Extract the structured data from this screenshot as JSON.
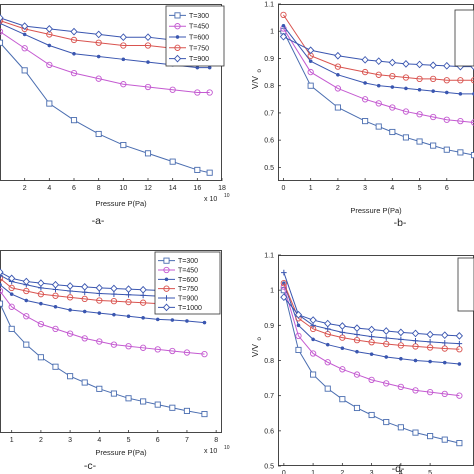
{
  "chart_data": [
    {
      "id": "a",
      "type": "line",
      "panel_label": "-a-",
      "xlabel": "Pressure P(Pa)",
      "ylabel": "",
      "x_exponent": "x 10",
      "x_exponent_power": "10",
      "xlim": [
        0,
        18
      ],
      "ylim": [
        0.38,
        1.02
      ],
      "xticks": [
        2,
        4,
        6,
        8,
        10,
        12,
        14,
        16,
        18
      ],
      "yticks": [],
      "legend_position": "top-right",
      "x": [
        0,
        2,
        4,
        6,
        8,
        10,
        12,
        14,
        16,
        17
      ],
      "series": [
        {
          "name": "T=300",
          "color": "#4a6db0",
          "marker": "square",
          "values": [
            0.88,
            0.78,
            0.66,
            0.6,
            0.55,
            0.51,
            0.48,
            0.45,
            0.42,
            0.41
          ]
        },
        {
          "name": "T=450",
          "color": "#c45ad1",
          "marker": "circle",
          "values": [
            0.92,
            0.86,
            0.8,
            0.77,
            0.75,
            0.73,
            0.72,
            0.71,
            0.7,
            0.7
          ]
        },
        {
          "name": "T=600",
          "color": "#3a56b0",
          "marker": "dot",
          "values": [
            0.95,
            0.91,
            0.87,
            0.84,
            0.83,
            0.82,
            0.81,
            0.8,
            0.79,
            0.79
          ]
        },
        {
          "name": "T=750",
          "color": "#d9534f",
          "marker": "circle",
          "values": [
            0.96,
            0.93,
            0.91,
            0.89,
            0.88,
            0.87,
            0.87,
            0.86,
            0.86,
            0.86
          ]
        },
        {
          "name": "T=900",
          "color": "#3a56b0",
          "marker": "diamond",
          "values": [
            0.97,
            0.94,
            0.93,
            0.92,
            0.91,
            0.9,
            0.9,
            0.89,
            0.89,
            0.89
          ]
        }
      ]
    },
    {
      "id": "b",
      "type": "line",
      "panel_label": "-b-",
      "xlabel": "Pressure P(Pa)",
      "ylabel": "V/V0",
      "ylabel_main": "V/V",
      "ylabel_sub": "o",
      "xlim": [
        -0.2,
        7
      ],
      "ylim": [
        0.45,
        1.1
      ],
      "xticks": [
        0,
        1,
        2,
        3,
        4,
        5,
        6
      ],
      "yticks": [
        0.5,
        0.6,
        0.7,
        0.8,
        0.9,
        1,
        1.1
      ],
      "x": [
        0,
        1,
        2,
        3,
        3.5,
        4,
        4.5,
        5,
        5.5,
        6,
        6.5,
        7
      ],
      "series": [
        {
          "color": "#4a6db0",
          "marker": "square",
          "values": [
            1.0,
            0.8,
            0.72,
            0.67,
            0.65,
            0.63,
            0.61,
            0.595,
            0.58,
            0.565,
            0.555,
            0.545
          ]
        },
        {
          "color": "#c45ad1",
          "marker": "circle",
          "values": [
            1.01,
            0.85,
            0.79,
            0.75,
            0.735,
            0.72,
            0.705,
            0.695,
            0.685,
            0.675,
            0.67,
            0.665
          ]
        },
        {
          "color": "#3a56b0",
          "marker": "dot",
          "values": [
            1.02,
            0.89,
            0.84,
            0.81,
            0.8,
            0.795,
            0.79,
            0.785,
            0.78,
            0.775,
            0.77,
            0.77
          ]
        },
        {
          "color": "#d9534f",
          "marker": "circle",
          "values": [
            1.06,
            0.91,
            0.87,
            0.85,
            0.84,
            0.835,
            0.83,
            0.825,
            0.825,
            0.82,
            0.82,
            0.82
          ]
        },
        {
          "color": "#3a56b0",
          "marker": "diamond",
          "values": [
            0.98,
            0.93,
            0.91,
            0.895,
            0.89,
            0.885,
            0.88,
            0.878,
            0.875,
            0.873,
            0.87,
            0.87
          ]
        }
      ]
    },
    {
      "id": "c",
      "type": "line",
      "panel_label": "-c-",
      "xlabel": "Pressure P(Pa)",
      "ylabel": "",
      "x_exponent": "x 10",
      "x_exponent_power": "10",
      "xlim": [
        0.6,
        8.2
      ],
      "ylim": [
        0.42,
        1.0
      ],
      "xticks": [
        1,
        2,
        3,
        4,
        5,
        6,
        7,
        8
      ],
      "yticks": [],
      "legend_position": "top-right",
      "x": [
        0.6,
        1,
        1.5,
        2,
        2.5,
        3,
        3.5,
        4,
        4.5,
        5,
        5.5,
        6,
        6.5,
        7,
        7.6
      ],
      "series": [
        {
          "name": "T=300",
          "color": "#4a6db0",
          "marker": "square",
          "values": [
            0.83,
            0.75,
            0.7,
            0.66,
            0.63,
            0.6,
            0.58,
            0.56,
            0.545,
            0.53,
            0.52,
            0.51,
            0.5,
            0.49,
            0.48
          ]
        },
        {
          "name": "T=450",
          "color": "#c45ad1",
          "marker": "circle",
          "values": [
            0.87,
            0.82,
            0.79,
            0.765,
            0.75,
            0.735,
            0.72,
            0.71,
            0.7,
            0.695,
            0.69,
            0.685,
            0.68,
            0.675,
            0.67
          ]
        },
        {
          "name": "T=600",
          "color": "#3a56b0",
          "marker": "dot",
          "values": [
            0.89,
            0.86,
            0.84,
            0.83,
            0.82,
            0.81,
            0.805,
            0.8,
            0.795,
            0.79,
            0.785,
            0.78,
            0.778,
            0.775,
            0.77
          ]
        },
        {
          "name": "T=750",
          "color": "#d9534f",
          "marker": "circle",
          "values": [
            0.91,
            0.88,
            0.87,
            0.86,
            0.855,
            0.85,
            0.845,
            0.84,
            0.838,
            0.835,
            0.833,
            0.83,
            0.828,
            0.826,
            0.825
          ]
        },
        {
          "name": "T=900",
          "color": "#3a56b0",
          "marker": "plus",
          "values": [
            0.92,
            0.9,
            0.89,
            0.88,
            0.875,
            0.87,
            0.866,
            0.862,
            0.86,
            0.858,
            0.856,
            0.854,
            0.852,
            0.85,
            0.85
          ]
        },
        {
          "name": "T=1000",
          "color": "#3a56b0",
          "marker": "diamond",
          "values": [
            0.93,
            0.91,
            0.9,
            0.895,
            0.89,
            0.886,
            0.883,
            0.88,
            0.878,
            0.876,
            0.874,
            0.872,
            0.87,
            0.87,
            0.87
          ]
        }
      ]
    },
    {
      "id": "d",
      "type": "line",
      "panel_label": "-d-",
      "xlabel": "",
      "ylabel": "V/V0",
      "ylabel_main": "V/V",
      "ylabel_sub": "o",
      "xlim": [
        -0.2,
        6.5
      ],
      "ylim": [
        0.5,
        1.1
      ],
      "xticks": [
        0,
        1,
        2,
        3,
        4,
        5
      ],
      "yticks": [
        0.5,
        0.6,
        0.7,
        0.8,
        0.9,
        1,
        1.1
      ],
      "x": [
        0,
        0.5,
        1,
        1.5,
        2,
        2.5,
        3,
        3.5,
        4,
        4.5,
        5,
        5.5,
        6
      ],
      "series": [
        {
          "color": "#4a6db0",
          "marker": "square",
          "values": [
            1.0,
            0.83,
            0.76,
            0.72,
            0.69,
            0.665,
            0.645,
            0.625,
            0.61,
            0.595,
            0.585,
            0.575,
            0.565
          ]
        },
        {
          "color": "#c45ad1",
          "marker": "circle",
          "values": [
            1.01,
            0.87,
            0.82,
            0.795,
            0.775,
            0.76,
            0.745,
            0.735,
            0.725,
            0.715,
            0.71,
            0.705,
            0.7
          ]
        },
        {
          "color": "#3a56b0",
          "marker": "dot",
          "values": [
            1.02,
            0.9,
            0.86,
            0.845,
            0.835,
            0.825,
            0.818,
            0.81,
            0.805,
            0.8,
            0.797,
            0.794,
            0.79
          ]
        },
        {
          "color": "#d9534f",
          "marker": "circle",
          "values": [
            1.02,
            0.92,
            0.89,
            0.875,
            0.865,
            0.858,
            0.852,
            0.847,
            0.843,
            0.84,
            0.837,
            0.834,
            0.832
          ]
        },
        {
          "color": "#3a56b0",
          "marker": "plus",
          "values": [
            1.05,
            0.93,
            0.9,
            0.89,
            0.88,
            0.874,
            0.868,
            0.864,
            0.86,
            0.856,
            0.853,
            0.85,
            0.848
          ]
        },
        {
          "color": "#3a56b0",
          "marker": "diamond",
          "values": [
            0.98,
            0.93,
            0.915,
            0.905,
            0.898,
            0.892,
            0.888,
            0.884,
            0.88,
            0.877,
            0.874,
            0.872,
            0.87
          ]
        }
      ]
    }
  ]
}
